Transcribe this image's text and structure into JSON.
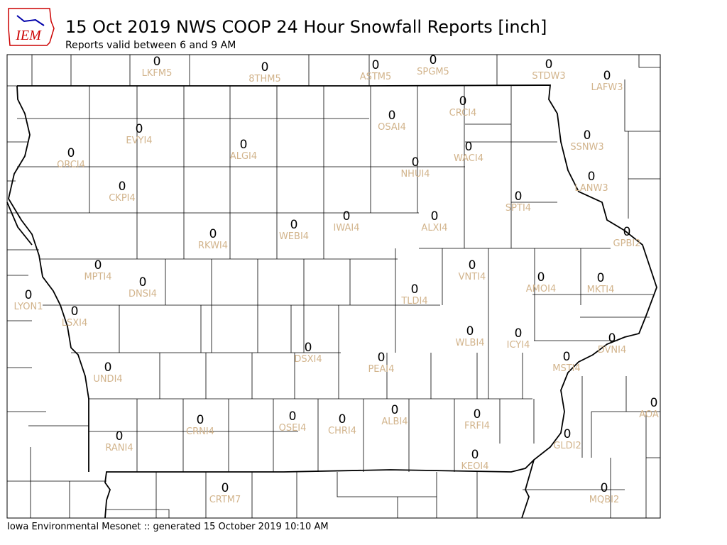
{
  "header": {
    "logo": "IEM",
    "title": "15 Oct 2019 NWS COOP 24 Hour Snowfall Reports [inch]",
    "subtitle": "Reports valid between 6 and 9 AM"
  },
  "stations": [
    {
      "id": "LKFM5",
      "value": 0
    },
    {
      "id": "8THM5",
      "value": 0
    },
    {
      "id": "ASTM5",
      "value": 0
    },
    {
      "id": "SPGM5",
      "value": 0
    },
    {
      "id": "STDW3",
      "value": 0
    },
    {
      "id": "LAFW3",
      "value": 0
    },
    {
      "id": "CRCI4",
      "value": 0
    },
    {
      "id": "OSAI4",
      "value": 0
    },
    {
      "id": "EVYI4",
      "value": 0
    },
    {
      "id": "ALGI4",
      "value": 0
    },
    {
      "id": "WACI4",
      "value": 0
    },
    {
      "id": "SSNW3",
      "value": 0
    },
    {
      "id": "ORCI4",
      "value": 0
    },
    {
      "id": "NHUI4",
      "value": 0
    },
    {
      "id": "LANW3",
      "value": 0
    },
    {
      "id": "CKPI4",
      "value": 0
    },
    {
      "id": "SPTI4",
      "value": 0
    },
    {
      "id": "ALXI4",
      "value": 0
    },
    {
      "id": "IWAI4",
      "value": 0
    },
    {
      "id": "WEBI4",
      "value": 0
    },
    {
      "id": "RKWI4",
      "value": 0
    },
    {
      "id": "GPBI2",
      "value": 0
    },
    {
      "id": "MPTI4",
      "value": 0
    },
    {
      "id": "VNTI4",
      "value": 0
    },
    {
      "id": "AMOI4",
      "value": 0
    },
    {
      "id": "MKTI4",
      "value": 0
    },
    {
      "id": "DNSI4",
      "value": 0
    },
    {
      "id": "TLDI4",
      "value": 0
    },
    {
      "id": "LYON1",
      "value": 0
    },
    {
      "id": "LSXI4",
      "value": 0
    },
    {
      "id": "WLBI4",
      "value": 0
    },
    {
      "id": "ICYI4",
      "value": 0
    },
    {
      "id": "DVNI4",
      "value": 0
    },
    {
      "id": "DSXI4",
      "value": 0
    },
    {
      "id": "PEAI4",
      "value": 0
    },
    {
      "id": "MSTI4",
      "value": 0
    },
    {
      "id": "UNDI4",
      "value": 0
    },
    {
      "id": "AOA",
      "value": 0
    },
    {
      "id": "ALBI4",
      "value": 0
    },
    {
      "id": "FRFI4",
      "value": 0
    },
    {
      "id": "OSEI4",
      "value": 0
    },
    {
      "id": "CHRI4",
      "value": 0
    },
    {
      "id": "CRNI4",
      "value": 0
    },
    {
      "id": "RANI4",
      "value": 0
    },
    {
      "id": "GLDI2",
      "value": 0
    },
    {
      "id": "KEOI4",
      "value": 0
    },
    {
      "id": "CRTM7",
      "value": 0
    },
    {
      "id": "MQBI2",
      "value": 0
    }
  ],
  "footer": "Iowa Environmental Mesonet :: generated 15 October 2019 10:10 AM"
}
